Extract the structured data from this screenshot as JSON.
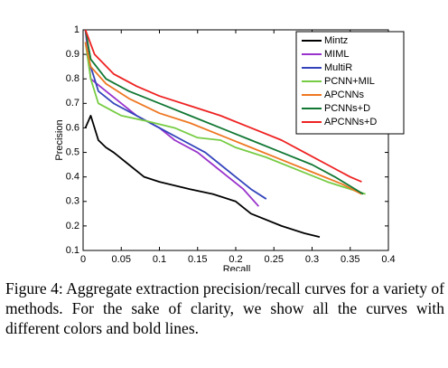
{
  "chart_data": {
    "type": "line",
    "xlabel": "Recall",
    "ylabel": "Precision",
    "xlim": [
      0,
      0.4
    ],
    "ylim": [
      0.1,
      1
    ],
    "xticks": [
      0,
      0.05,
      0.1,
      0.15,
      0.2,
      0.25,
      0.3,
      0.35,
      0.4
    ],
    "yticks": [
      0.1,
      0.2,
      0.3,
      0.4,
      0.5,
      0.6,
      0.7,
      0.8,
      0.9,
      1
    ],
    "legend": "upper right",
    "grid": false,
    "series": [
      {
        "name": "Mintz",
        "color": "#000000",
        "x": [
          0.003,
          0.01,
          0.02,
          0.03,
          0.04,
          0.06,
          0.08,
          0.1,
          0.14,
          0.17,
          0.2,
          0.22,
          0.26,
          0.29,
          0.31
        ],
        "values": [
          0.6,
          0.65,
          0.55,
          0.52,
          0.5,
          0.45,
          0.4,
          0.38,
          0.35,
          0.33,
          0.3,
          0.25,
          0.2,
          0.17,
          0.155
        ]
      },
      {
        "name": "MIML",
        "color": "#9933cc",
        "x": [
          0.003,
          0.01,
          0.03,
          0.05,
          0.07,
          0.1,
          0.12,
          0.15,
          0.17,
          0.19,
          0.21,
          0.23
        ],
        "values": [
          1.0,
          0.8,
          0.75,
          0.7,
          0.65,
          0.6,
          0.55,
          0.5,
          0.45,
          0.4,
          0.35,
          0.28
        ]
      },
      {
        "name": "MultiR",
        "color": "#3344bb",
        "x": [
          0.005,
          0.02,
          0.04,
          0.07,
          0.1,
          0.13,
          0.16,
          0.18,
          0.2,
          0.22,
          0.24
        ],
        "values": [
          0.9,
          0.75,
          0.7,
          0.65,
          0.6,
          0.55,
          0.5,
          0.45,
          0.4,
          0.35,
          0.31
        ]
      },
      {
        "name": "PCNN+MIL",
        "color": "#77cc44",
        "x": [
          0.003,
          0.01,
          0.02,
          0.05,
          0.08,
          0.12,
          0.15,
          0.18,
          0.2,
          0.24,
          0.28,
          0.32,
          0.37
        ],
        "values": [
          0.95,
          0.8,
          0.7,
          0.65,
          0.63,
          0.6,
          0.56,
          0.55,
          0.52,
          0.48,
          0.43,
          0.38,
          0.33
        ]
      },
      {
        "name": "APCNNs",
        "color": "#ee7722",
        "x": [
          0.003,
          0.01,
          0.03,
          0.06,
          0.1,
          0.14,
          0.18,
          0.22,
          0.26,
          0.3,
          0.34,
          0.365
        ],
        "values": [
          0.95,
          0.85,
          0.78,
          0.72,
          0.66,
          0.62,
          0.57,
          0.52,
          0.47,
          0.42,
          0.37,
          0.33
        ]
      },
      {
        "name": "PCNNs+D",
        "color": "#117733",
        "x": [
          0.003,
          0.01,
          0.03,
          0.06,
          0.1,
          0.14,
          0.18,
          0.22,
          0.26,
          0.3,
          0.33,
          0.367
        ],
        "values": [
          1.0,
          0.88,
          0.8,
          0.75,
          0.7,
          0.65,
          0.6,
          0.55,
          0.5,
          0.45,
          0.4,
          0.33
        ]
      },
      {
        "name": "APCNNs+D",
        "color": "#ee2222",
        "x": [
          0.003,
          0.015,
          0.04,
          0.07,
          0.1,
          0.14,
          0.18,
          0.22,
          0.26,
          0.29,
          0.32,
          0.35,
          0.365
        ],
        "values": [
          1.0,
          0.9,
          0.82,
          0.77,
          0.73,
          0.69,
          0.65,
          0.6,
          0.55,
          0.5,
          0.45,
          0.4,
          0.38
        ]
      }
    ]
  },
  "caption": "Figure 4: Aggregate extraction precision/recall curves for a variety of methods. For the sake of clarity, we show all the curves with different colors and bold lines."
}
